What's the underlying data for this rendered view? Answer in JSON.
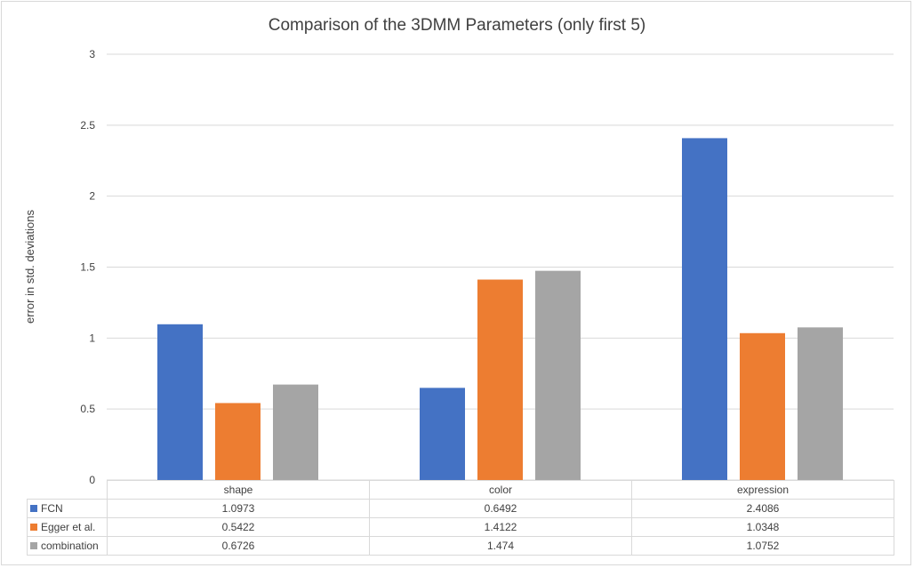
{
  "chart_data": {
    "type": "bar",
    "title": "Comparison of the 3DMM Parameters (only first 5)",
    "ylabel": "error in std. deviations",
    "xlabel": "",
    "ylim": [
      0,
      3
    ],
    "yticks": [
      0,
      0.5,
      1,
      1.5,
      2,
      2.5,
      3
    ],
    "ytick_labels": [
      "0",
      "0.5",
      "1",
      "1.5",
      "2",
      "2.5",
      "3"
    ],
    "grid": true,
    "legend": "data-table-below",
    "categories": [
      "shape",
      "color",
      "expression"
    ],
    "series": [
      {
        "name": "FCN",
        "color": "#4472c4",
        "values": [
          1.0973,
          0.6492,
          2.4086
        ],
        "labels": [
          "1.0973",
          "0.6492",
          "2.4086"
        ]
      },
      {
        "name": "Egger et al.",
        "color": "#ed7d31",
        "values": [
          0.5422,
          1.4122,
          1.0348
        ],
        "labels": [
          "0.5422",
          "1.4122",
          "1.0348"
        ]
      },
      {
        "name": "combination",
        "color": "#a5a5a5",
        "values": [
          0.6726,
          1.474,
          1.0752
        ],
        "labels": [
          "0.6726",
          "1.474",
          "1.0752"
        ]
      }
    ]
  }
}
